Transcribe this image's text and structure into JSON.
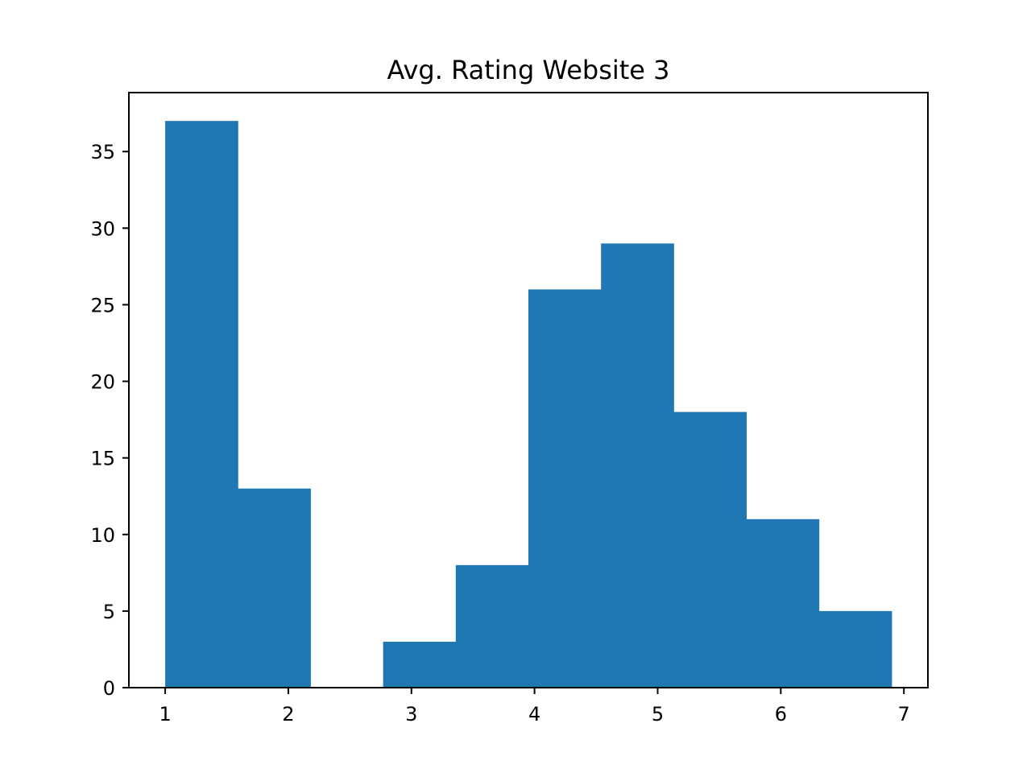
{
  "chart_data": {
    "type": "bar",
    "subtype": "histogram",
    "title": "Avg. Rating Website 3",
    "xlabel": "",
    "ylabel": "",
    "bins": [
      {
        "x0": 1.0,
        "x1": 1.59,
        "count": 37
      },
      {
        "x0": 1.59,
        "x1": 2.18,
        "count": 13
      },
      {
        "x0": 2.18,
        "x1": 2.77,
        "count": 0
      },
      {
        "x0": 2.77,
        "x1": 3.36,
        "count": 3
      },
      {
        "x0": 3.36,
        "x1": 3.95,
        "count": 8
      },
      {
        "x0": 3.95,
        "x1": 4.54,
        "count": 26
      },
      {
        "x0": 4.54,
        "x1": 5.13,
        "count": 29
      },
      {
        "x0": 5.13,
        "x1": 5.72,
        "count": 18
      },
      {
        "x0": 5.72,
        "x1": 6.31,
        "count": 11
      },
      {
        "x0": 6.31,
        "x1": 6.9,
        "count": 5
      }
    ],
    "xlim": [
      0.705,
      7.195
    ],
    "ylim": [
      0,
      38.85
    ],
    "xticks": [
      1,
      2,
      3,
      4,
      5,
      6,
      7
    ],
    "yticks": [
      0,
      5,
      10,
      15,
      20,
      25,
      30,
      35
    ],
    "bar_color": "#1f77b4",
    "grid": false,
    "legend": false
  }
}
